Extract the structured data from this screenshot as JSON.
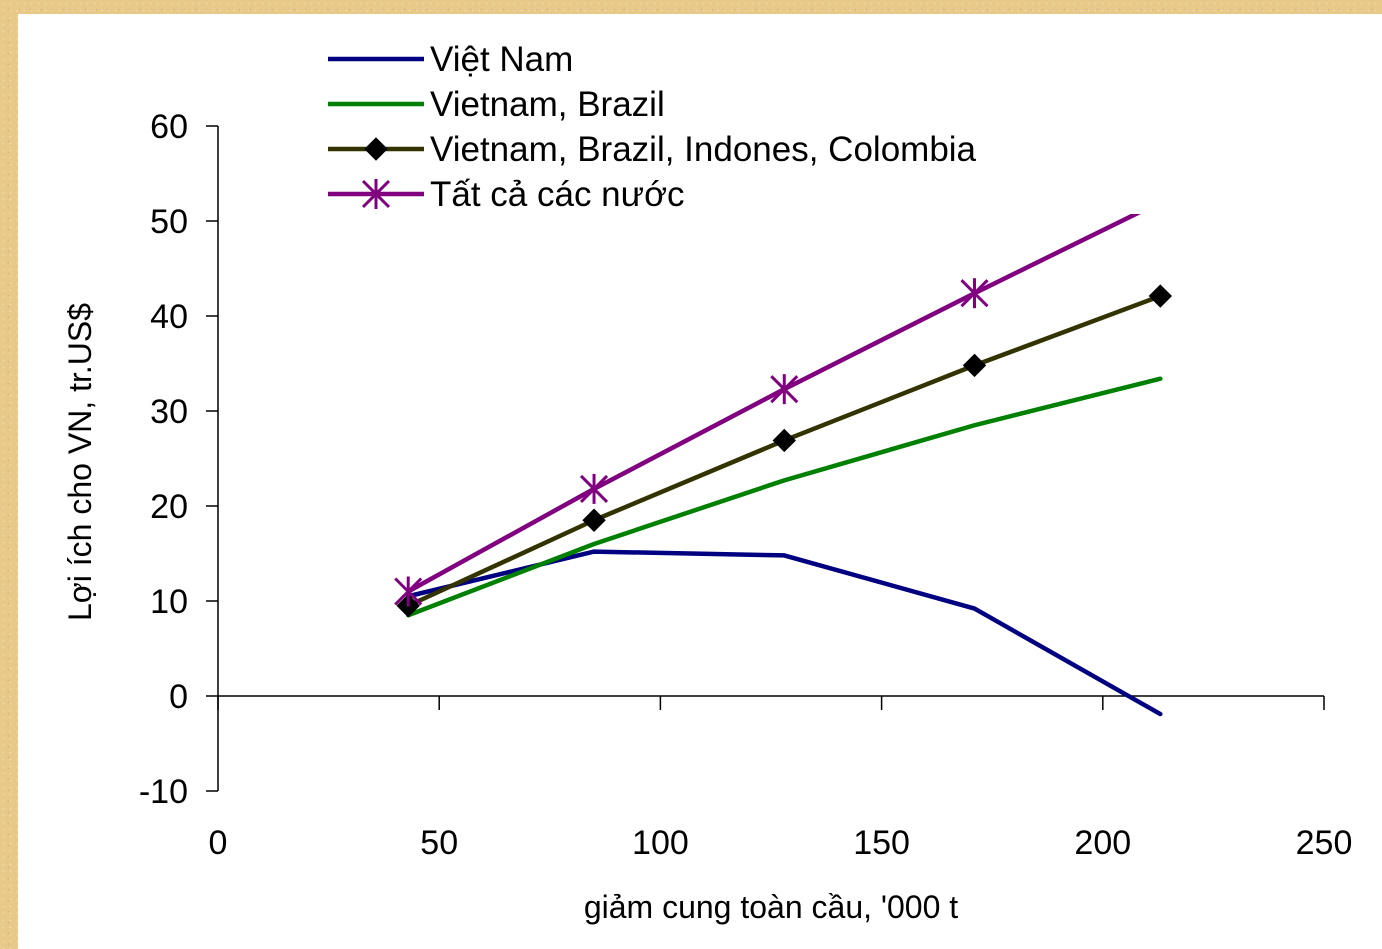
{
  "chart_data": {
    "type": "line",
    "xlabel": "giảm cung toàn cầu, '000 t",
    "ylabel": "Lợi ích cho VN, tr.US$",
    "xlim": [
      0,
      250
    ],
    "ylim": [
      -10,
      60
    ],
    "x_ticks": [
      "0",
      "50",
      "100",
      "150",
      "200",
      "250"
    ],
    "y_ticks": [
      "60",
      "50",
      "40",
      "30",
      "20",
      "10",
      "0",
      "-10"
    ],
    "grid": false,
    "legend_position": "top",
    "series": [
      {
        "name": "Việt Nam",
        "color": "#000080",
        "marker": "none",
        "x": [
          43,
          85,
          128,
          171,
          213
        ],
        "y": [
          10.5,
          15.2,
          14.8,
          9.2,
          -1.9
        ]
      },
      {
        "name": "Vietnam, Brazil",
        "color": "#008000",
        "marker": "none",
        "x": [
          43,
          85,
          128,
          171,
          213
        ],
        "y": [
          8.5,
          16.0,
          22.7,
          28.5,
          33.4
        ]
      },
      {
        "name": "Vietnam, Brazil, Indones, Colombia",
        "color": "#333300",
        "marker": "diamond",
        "x": [
          43,
          85,
          128,
          171,
          213
        ],
        "y": [
          9.5,
          18.5,
          26.9,
          34.8,
          42.1
        ]
      },
      {
        "name": "Tất cả các nước",
        "color": "#800080",
        "marker": "asterisk",
        "x": [
          43,
          85,
          128,
          171,
          213
        ],
        "y": [
          11.0,
          21.8,
          32.3,
          42.4,
          52.0
        ]
      }
    ]
  }
}
